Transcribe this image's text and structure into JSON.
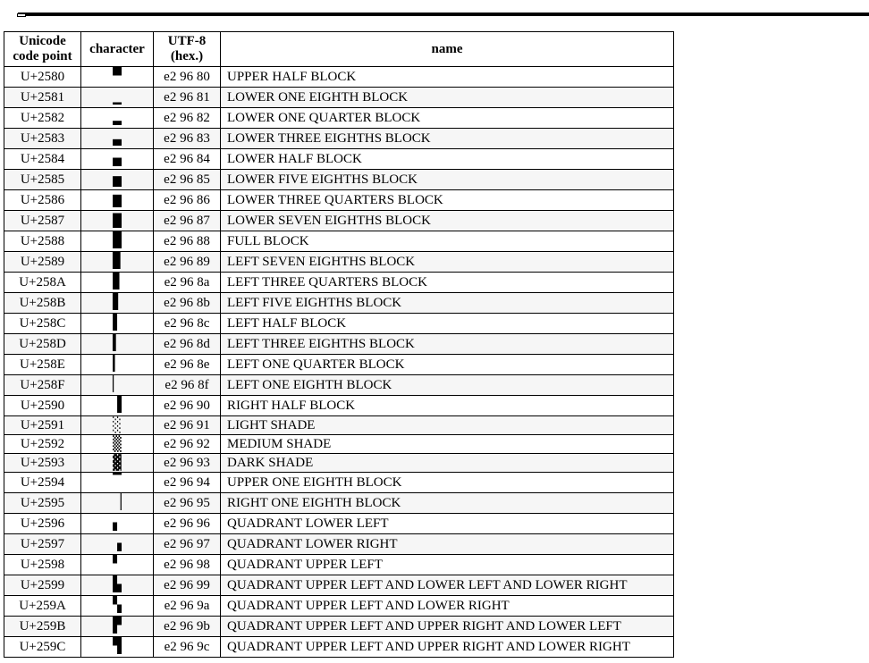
{
  "table": {
    "headers": {
      "code_point": "Unicode code point",
      "character": "character",
      "utf8": "UTF-8 (hex.)",
      "name": "name"
    },
    "rows": [
      {
        "code": "U+2580",
        "char": "▀",
        "utf8": "e2 96 80",
        "name": "UPPER HALF BLOCK"
      },
      {
        "code": "U+2581",
        "char": "▁",
        "utf8": "e2 96 81",
        "name": "LOWER ONE EIGHTH BLOCK"
      },
      {
        "code": "U+2582",
        "char": "▂",
        "utf8": "e2 96 82",
        "name": "LOWER ONE QUARTER BLOCK"
      },
      {
        "code": "U+2583",
        "char": "▃",
        "utf8": "e2 96 83",
        "name": "LOWER THREE EIGHTHS BLOCK"
      },
      {
        "code": "U+2584",
        "char": "▄",
        "utf8": "e2 96 84",
        "name": "LOWER HALF BLOCK"
      },
      {
        "code": "U+2585",
        "char": "▅",
        "utf8": "e2 96 85",
        "name": "LOWER FIVE EIGHTHS BLOCK"
      },
      {
        "code": "U+2586",
        "char": "▆",
        "utf8": "e2 96 86",
        "name": "LOWER THREE QUARTERS BLOCK"
      },
      {
        "code": "U+2587",
        "char": "▇",
        "utf8": "e2 96 87",
        "name": "LOWER SEVEN EIGHTHS BLOCK"
      },
      {
        "code": "U+2588",
        "char": "█",
        "utf8": "e2 96 88",
        "name": "FULL BLOCK"
      },
      {
        "code": "U+2589",
        "char": "▉",
        "utf8": "e2 96 89",
        "name": "LEFT SEVEN EIGHTHS BLOCK"
      },
      {
        "code": "U+258A",
        "char": "▊",
        "utf8": "e2 96 8a",
        "name": "LEFT THREE QUARTERS BLOCK"
      },
      {
        "code": "U+258B",
        "char": "▋",
        "utf8": "e2 96 8b",
        "name": "LEFT FIVE EIGHTHS BLOCK"
      },
      {
        "code": "U+258C",
        "char": "▌",
        "utf8": "e2 96 8c",
        "name": "LEFT HALF BLOCK"
      },
      {
        "code": "U+258D",
        "char": "▍",
        "utf8": "e2 96 8d",
        "name": "LEFT THREE EIGHTHS BLOCK"
      },
      {
        "code": "U+258E",
        "char": "▎",
        "utf8": "e2 96 8e",
        "name": "LEFT ONE QUARTER BLOCK"
      },
      {
        "code": "U+258F",
        "char": "▏",
        "utf8": "e2 96 8f",
        "name": "LEFT ONE EIGHTH BLOCK"
      },
      {
        "code": "U+2590",
        "char": "▐",
        "utf8": "e2 96 90",
        "name": "RIGHT HALF BLOCK"
      },
      {
        "code": "U+2591",
        "char": "░",
        "utf8": "e2 96 91",
        "name": "LIGHT SHADE"
      },
      {
        "code": "U+2592",
        "char": "▒",
        "utf8": "e2 96 92",
        "name": "MEDIUM SHADE"
      },
      {
        "code": "U+2593",
        "char": "▓",
        "utf8": "e2 96 93",
        "name": "DARK SHADE"
      },
      {
        "code": "U+2594",
        "char": "▔",
        "utf8": "e2 96 94",
        "name": "UPPER ONE EIGHTH BLOCK"
      },
      {
        "code": "U+2595",
        "char": "▕",
        "utf8": "e2 96 95",
        "name": "RIGHT ONE EIGHTH BLOCK"
      },
      {
        "code": "U+2596",
        "char": "▖",
        "utf8": "e2 96 96",
        "name": "QUADRANT LOWER LEFT"
      },
      {
        "code": "U+2597",
        "char": "▗",
        "utf8": "e2 96 97",
        "name": "QUADRANT LOWER RIGHT"
      },
      {
        "code": "U+2598",
        "char": "▘",
        "utf8": "e2 96 98",
        "name": "QUADRANT UPPER LEFT"
      },
      {
        "code": "U+2599",
        "char": "▙",
        "utf8": "e2 96 99",
        "name": "QUADRANT UPPER LEFT AND LOWER LEFT AND LOWER RIGHT"
      },
      {
        "code": "U+259A",
        "char": "▚",
        "utf8": "e2 96 9a",
        "name": "QUADRANT UPPER LEFT AND LOWER RIGHT"
      },
      {
        "code": "U+259B",
        "char": "▛",
        "utf8": "e2 96 9b",
        "name": "QUADRANT UPPER LEFT AND UPPER RIGHT AND LOWER LEFT"
      },
      {
        "code": "U+259C",
        "char": "▜",
        "utf8": "e2 96 9c",
        "name": "QUADRANT UPPER LEFT AND UPPER RIGHT AND LOWER RIGHT"
      }
    ]
  }
}
